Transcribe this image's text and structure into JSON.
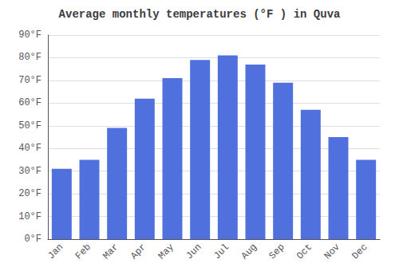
{
  "chart_data": {
    "type": "bar",
    "title": "Average monthly temperatures (°F ) in Quva",
    "categories": [
      "Jan",
      "Feb",
      "Mar",
      "Apr",
      "May",
      "Jun",
      "Jul",
      "Aug",
      "Sep",
      "Oct",
      "Nov",
      "Dec"
    ],
    "values": [
      31,
      35,
      49,
      62,
      71,
      79,
      81,
      77,
      69,
      57,
      45,
      35
    ],
    "ylim": [
      0,
      90
    ],
    "yticks": [
      {
        "value": 0,
        "label": "0°F"
      },
      {
        "value": 10,
        "label": "10°F"
      },
      {
        "value": 20,
        "label": "20°F"
      },
      {
        "value": 30,
        "label": "30°F"
      },
      {
        "value": 40,
        "label": "40°F"
      },
      {
        "value": 50,
        "label": "50°F"
      },
      {
        "value": 60,
        "label": "60°F"
      },
      {
        "value": 70,
        "label": "70°F"
      },
      {
        "value": 80,
        "label": "80°F"
      },
      {
        "value": 90,
        "label": "90°F"
      }
    ],
    "grid": true
  }
}
